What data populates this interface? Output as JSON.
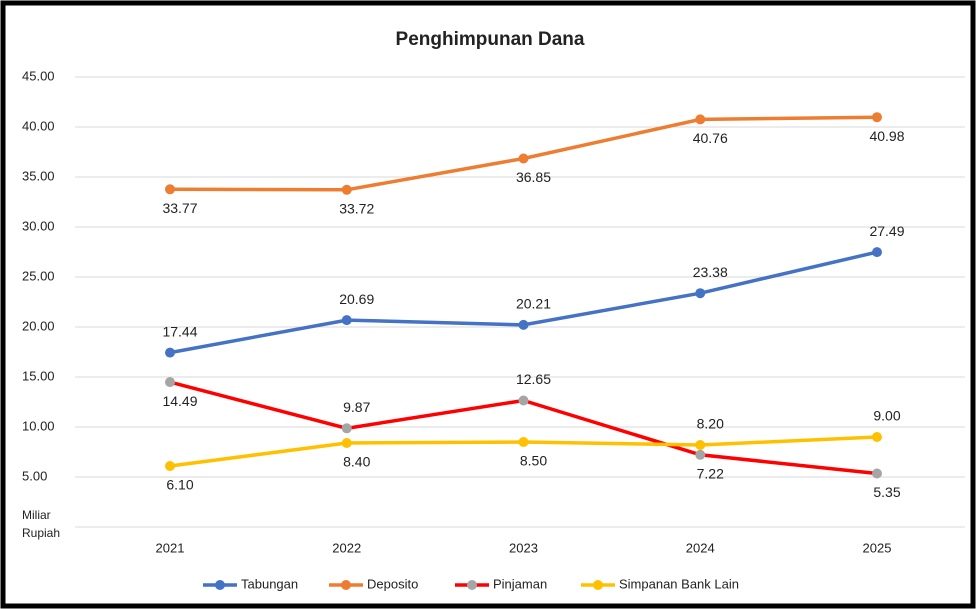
{
  "chart_data": {
    "type": "line",
    "title": "Penghimpunan Dana",
    "y_label": "Miliar Rupiah",
    "categories": [
      "2021",
      "2022",
      "2023",
      "2024",
      "2025"
    ],
    "series": [
      {
        "name": "Tabungan",
        "color": "#4472c4",
        "values": [
          17.44,
          20.69,
          20.21,
          23.38,
          27.49
        ],
        "value_labels": [
          "17.44",
          "20.69",
          "20.21",
          "23.38",
          "27.49"
        ]
      },
      {
        "name": "Deposito",
        "color": "#ed7d31",
        "values": [
          33.77,
          33.72,
          36.85,
          40.76,
          40.98
        ],
        "value_labels": [
          "33.77",
          "33.72",
          "36.85",
          "40.76",
          "40.98"
        ]
      },
      {
        "name": "Pinjaman",
        "color": "#ff0000",
        "marker_color": "#a5a5a5",
        "values": [
          14.49,
          9.87,
          12.65,
          7.22,
          5.35
        ],
        "value_labels": [
          "14.49",
          "9.87",
          "12.65",
          "7.22",
          "5.35"
        ]
      },
      {
        "name": "Simpanan Bank Lain",
        "color": "#ffc000",
        "values": [
          6.1,
          8.4,
          8.5,
          8.2,
          9.0
        ],
        "value_labels": [
          "6.10",
          "8.40",
          "8.50",
          "8.20",
          "9.00"
        ]
      }
    ],
    "ylim": [
      0,
      45
    ],
    "yticks": [
      {
        "value": 5,
        "label": "5.00"
      },
      {
        "value": 10,
        "label": "10.00"
      },
      {
        "value": 15,
        "label": "15.00"
      },
      {
        "value": 20,
        "label": "20.00"
      },
      {
        "value": 25,
        "label": "25.00"
      },
      {
        "value": 30,
        "label": "30.00"
      },
      {
        "value": 35,
        "label": "35.00"
      },
      {
        "value": 40,
        "label": "40.00"
      },
      {
        "value": 45,
        "label": "45.00"
      }
    ],
    "grid": true,
    "legend": "bottom"
  }
}
